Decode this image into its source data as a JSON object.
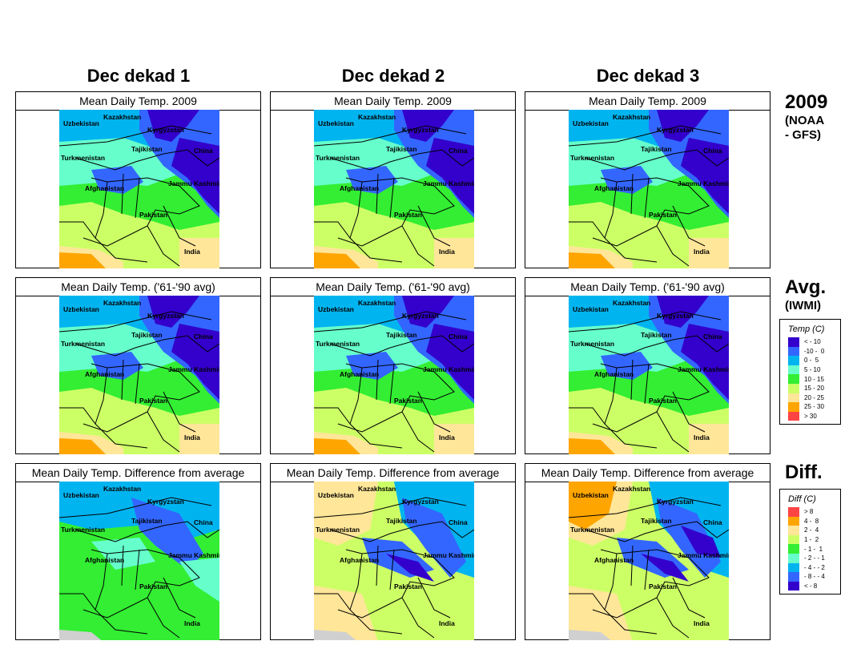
{
  "columns": [
    "Dec dekad 1",
    "Dec dekad 2",
    "Dec dekad 3"
  ],
  "rows": [
    {
      "key": "2009",
      "header": "2009",
      "sub": "(NOAA - GFS)",
      "sub1": "(NOAA",
      "sub2": "- GFS)",
      "panel_title": "Mean Daily Temp. 2009"
    },
    {
      "key": "avg",
      "header": "Avg.",
      "sub": "(IWMI)",
      "panel_title": "Mean Daily Temp. ('61-'90 avg)"
    },
    {
      "key": "diff",
      "header": "Diff.",
      "sub": "",
      "panel_title": "Mean Daily Temp. Difference from average"
    }
  ],
  "map_labels": {
    "kazakhstan": "Kazakhstan",
    "uzbekistan": "Uzbekistan",
    "kyrgyzstan": "Kyrgyzstan",
    "tajikistan": "Tajikistan",
    "turkmenistan": "Turkmenistan",
    "china": "China",
    "afghanistan": "Afghanistan",
    "jammu": "Jammu Kashmir",
    "pakistan": "Pakistan",
    "india": "India"
  },
  "temp_legend": {
    "title": "Temp (C)",
    "items": [
      {
        "label": "< - 10",
        "color": "#3300cc"
      },
      {
        "label": "-10 -  0",
        "color": "#3366ff"
      },
      {
        "label": "0 -  5",
        "color": "#00b4f0"
      },
      {
        "label": "5 - 10",
        "color": "#66ffcc"
      },
      {
        "label": "10 - 15",
        "color": "#33ee33"
      },
      {
        "label": "15 - 20",
        "color": "#ccff66"
      },
      {
        "label": "20 - 25",
        "color": "#ffe699"
      },
      {
        "label": "25 - 30",
        "color": "#ffa500"
      },
      {
        "label": "> 30",
        "color": "#ff4444"
      }
    ]
  },
  "diff_legend": {
    "title": "Diff (C)",
    "items": [
      {
        "label": "> 8",
        "color": "#ff4444"
      },
      {
        "label": "4 -  8",
        "color": "#ffa500"
      },
      {
        "label": "2 -  4",
        "color": "#ffe699"
      },
      {
        "label": "1 -  2",
        "color": "#ccff66"
      },
      {
        "label": "- 1 -  1",
        "color": "#33ee33"
      },
      {
        "label": "- 2 - - 1",
        "color": "#66ffcc"
      },
      {
        "label": "- 4 - - 2",
        "color": "#00b4f0"
      },
      {
        "label": "- 8 - - 4",
        "color": "#3366ff"
      },
      {
        "label": "< - 8",
        "color": "#3300cc"
      }
    ]
  },
  "colors": {
    "nodata": "#d0d0d0"
  }
}
